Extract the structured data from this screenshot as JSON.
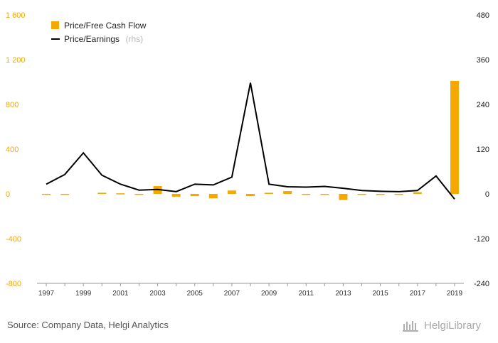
{
  "colors": {
    "bar": "#f5a800",
    "line": "#000000",
    "left_axis": "#f5a800",
    "right_axis": "#222222",
    "axis_line": "#999999",
    "source": "#555555",
    "brand": "#a8a8a8"
  },
  "chart_data": {
    "type": "bar",
    "combo": "bar + line (secondary axis)",
    "title": "",
    "xlabel": "",
    "ylabel": "",
    "grid": false,
    "legend_position": "top-left",
    "x": [
      1997,
      1998,
      1999,
      2000,
      2001,
      2002,
      2003,
      2004,
      2005,
      2006,
      2007,
      2008,
      2009,
      2010,
      2011,
      2012,
      2013,
      2014,
      2015,
      2016,
      2017,
      2018,
      2019
    ],
    "x_tick_labels": [
      "1997",
      "1999",
      "2001",
      "2003",
      "2005",
      "2007",
      "2009",
      "2011",
      "2013",
      "2015",
      "2017",
      "2019"
    ],
    "y_left": {
      "ylim": [
        -800,
        1600
      ],
      "ticks": [
        1600,
        1200,
        800,
        400,
        0,
        -400,
        -800
      ],
      "tick_labels": [
        "1 600",
        "1 200",
        "800",
        "400",
        "0",
        "-400",
        "-800"
      ]
    },
    "y_right": {
      "ylim": [
        -240,
        480
      ],
      "ticks": [
        480,
        360,
        240,
        120,
        0,
        -120,
        -240
      ],
      "tick_labels": [
        "480",
        "360",
        "240",
        "120",
        "0",
        "-120",
        "-240"
      ]
    },
    "series": [
      {
        "name": "Price/Free Cash Flow",
        "type": "bar",
        "axis": "left",
        "values": [
          -5,
          -5,
          null,
          10,
          5,
          -5,
          70,
          -25,
          -20,
          -40,
          30,
          -20,
          10,
          25,
          -5,
          -5,
          -55,
          -5,
          -5,
          -5,
          15,
          null,
          1010
        ]
      },
      {
        "name": "Price/Earnings",
        "name_suffix": "(rhs)",
        "type": "line",
        "axis": "right",
        "values": [
          26,
          52,
          110,
          50,
          26,
          10,
          12,
          6,
          26,
          24,
          45,
          298,
          26,
          19,
          18,
          20,
          15,
          9,
          7,
          6,
          9,
          48,
          -14
        ]
      }
    ]
  },
  "footer": {
    "source": "Source: Company Data, Helgi Analytics",
    "brand": "HelgiLibrary"
  }
}
